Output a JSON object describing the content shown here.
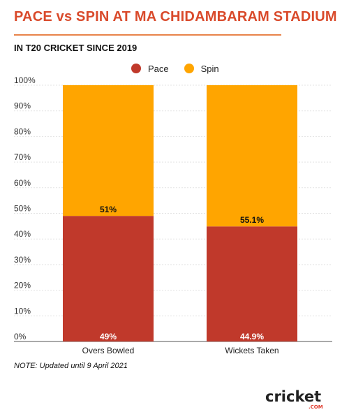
{
  "title": "PACE vs SPIN AT MA CHIDAMBARAM STADIUM",
  "subtitle": "IN T20 CRICKET SINCE 2019",
  "note": "NOTE: Updated until 9 April 2021",
  "logo": {
    "text": "cricket",
    "suffix": ".COM"
  },
  "colors": {
    "pace": "#c0392b",
    "spin": "#ffa500",
    "title": "#d94a2b",
    "rule": "#e8834a"
  },
  "chart_data": {
    "type": "bar",
    "stacked": true,
    "categories": [
      "Overs Bowled",
      "Wickets Taken"
    ],
    "series": [
      {
        "name": "Pace",
        "values": [
          49,
          44.9
        ],
        "labels": [
          "49%",
          "44.9%"
        ]
      },
      {
        "name": "Spin",
        "values": [
          51,
          55.1
        ],
        "labels": [
          "51%",
          "55.1%"
        ]
      }
    ],
    "ylim": [
      0,
      100
    ],
    "yticks": [
      "0%",
      "10%",
      "20%",
      "30%",
      "40%",
      "50%",
      "60%",
      "70%",
      "80%",
      "90%",
      "100%"
    ],
    "legend_position": "top-center",
    "grid": true
  }
}
